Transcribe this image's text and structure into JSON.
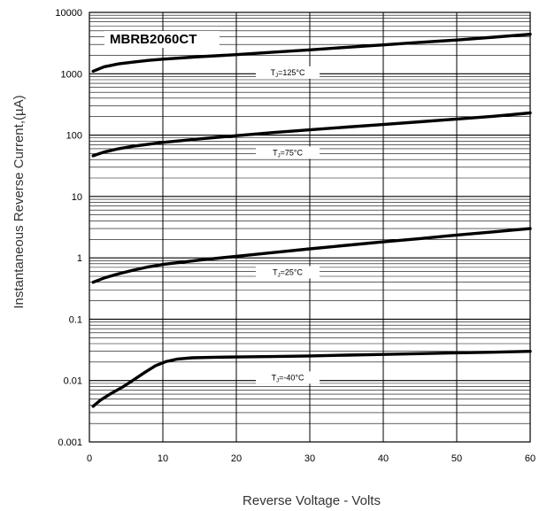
{
  "chart_data": {
    "type": "line",
    "title": "MBRB2060CT",
    "xlabel": "Reverse Voltage - Volts",
    "ylabel": "Instantaneous Reverse Current,(µA)",
    "xlim": [
      0,
      60
    ],
    "ylim": [
      0.001,
      10000
    ],
    "yscale": "log",
    "grid": true,
    "x_ticks": [
      "0",
      "10",
      "20",
      "30",
      "40",
      "50",
      "60"
    ],
    "y_ticks": [
      "10000",
      "1000",
      "100",
      "10",
      "1",
      "0.1",
      "0.01",
      "0.001"
    ],
    "series": [
      {
        "name": "TJ=125°C",
        "label_sub": "J",
        "label_rest": "=125°C",
        "label_at": 27,
        "points": [
          [
            0.5,
            1100
          ],
          [
            2,
            1300
          ],
          [
            4,
            1450
          ],
          [
            6,
            1550
          ],
          [
            8,
            1650
          ],
          [
            10,
            1730
          ],
          [
            15,
            1900
          ],
          [
            20,
            2050
          ],
          [
            25,
            2250
          ],
          [
            30,
            2450
          ],
          [
            35,
            2700
          ],
          [
            40,
            2950
          ],
          [
            45,
            3250
          ],
          [
            50,
            3550
          ],
          [
            55,
            3950
          ],
          [
            60,
            4400
          ]
        ]
      },
      {
        "name": "TJ=75°C",
        "label_sub": "J",
        "label_rest": "=75°C",
        "label_at": 27,
        "points": [
          [
            0.5,
            46
          ],
          [
            2,
            53
          ],
          [
            4,
            60
          ],
          [
            6,
            66
          ],
          [
            8,
            71
          ],
          [
            10,
            76
          ],
          [
            15,
            87
          ],
          [
            20,
            98
          ],
          [
            25,
            110
          ],
          [
            30,
            122
          ],
          [
            35,
            135
          ],
          [
            40,
            149
          ],
          [
            45,
            165
          ],
          [
            50,
            183
          ],
          [
            55,
            203
          ],
          [
            60,
            230
          ]
        ]
      },
      {
        "name": "TJ=25°C",
        "label_sub": "J",
        "label_rest": "=25°C",
        "label_at": 27,
        "points": [
          [
            0.5,
            0.4
          ],
          [
            2,
            0.47
          ],
          [
            4,
            0.55
          ],
          [
            6,
            0.63
          ],
          [
            8,
            0.71
          ],
          [
            10,
            0.78
          ],
          [
            15,
            0.92
          ],
          [
            20,
            1.06
          ],
          [
            25,
            1.22
          ],
          [
            30,
            1.4
          ],
          [
            35,
            1.6
          ],
          [
            40,
            1.82
          ],
          [
            45,
            2.06
          ],
          [
            50,
            2.35
          ],
          [
            55,
            2.65
          ],
          [
            60,
            3.0
          ]
        ]
      },
      {
        "name": "TJ=-40°C",
        "label_sub": "J",
        "label_rest": "=-40°C",
        "label_at": 27,
        "points": [
          [
            0.5,
            0.0038
          ],
          [
            1.5,
            0.0048
          ],
          [
            3,
            0.0062
          ],
          [
            4.5,
            0.0078
          ],
          [
            6,
            0.0102
          ],
          [
            7.5,
            0.0135
          ],
          [
            9,
            0.0175
          ],
          [
            10.5,
            0.0205
          ],
          [
            12,
            0.0224
          ],
          [
            14,
            0.0235
          ],
          [
            17,
            0.024
          ],
          [
            20,
            0.0242
          ],
          [
            25,
            0.0246
          ],
          [
            30,
            0.0252
          ],
          [
            35,
            0.026
          ],
          [
            40,
            0.0267
          ],
          [
            45,
            0.0275
          ],
          [
            50,
            0.0283
          ],
          [
            55,
            0.029
          ],
          [
            60,
            0.03
          ]
        ]
      }
    ]
  }
}
